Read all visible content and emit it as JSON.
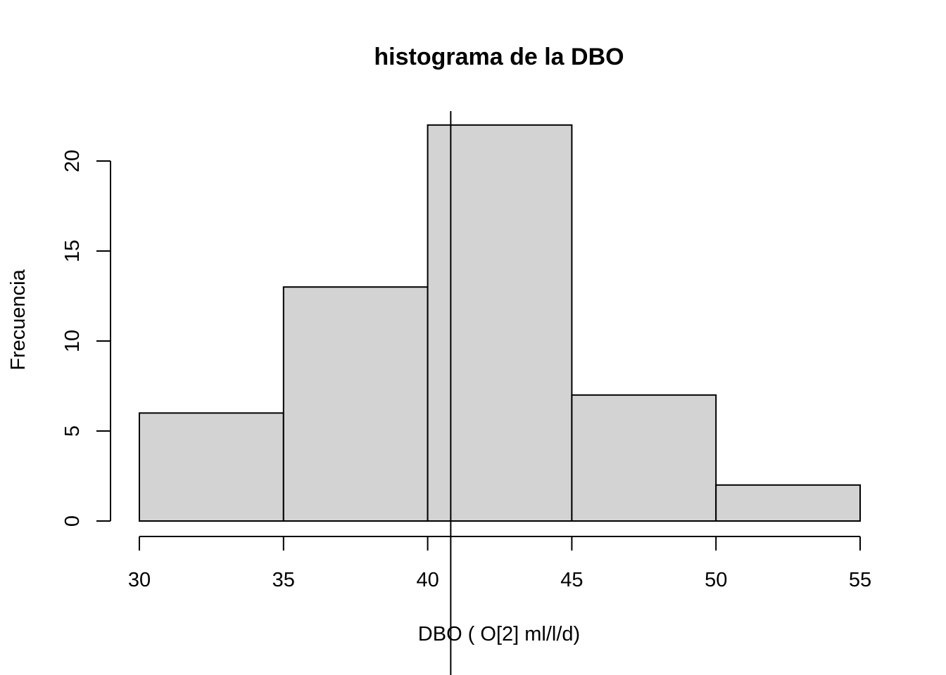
{
  "chart_data": {
    "type": "bar",
    "title": "histograma de la DBO",
    "xlabel": "DBO ( O[2] ml/l/d)",
    "ylabel": "Frecuencia",
    "breaks": [
      30,
      35,
      40,
      45,
      50,
      55
    ],
    "counts": [
      6,
      13,
      22,
      7,
      2
    ],
    "xlim": [
      30,
      55
    ],
    "ylim": [
      0,
      22
    ],
    "x_ticks": [
      30,
      35,
      40,
      45,
      50,
      55
    ],
    "y_ticks": [
      0,
      5,
      10,
      15,
      20
    ],
    "reference_line_x": 40.8,
    "grid": false,
    "colors": {
      "bar_fill": "#d3d3d3",
      "bar_stroke": "#000000"
    }
  }
}
